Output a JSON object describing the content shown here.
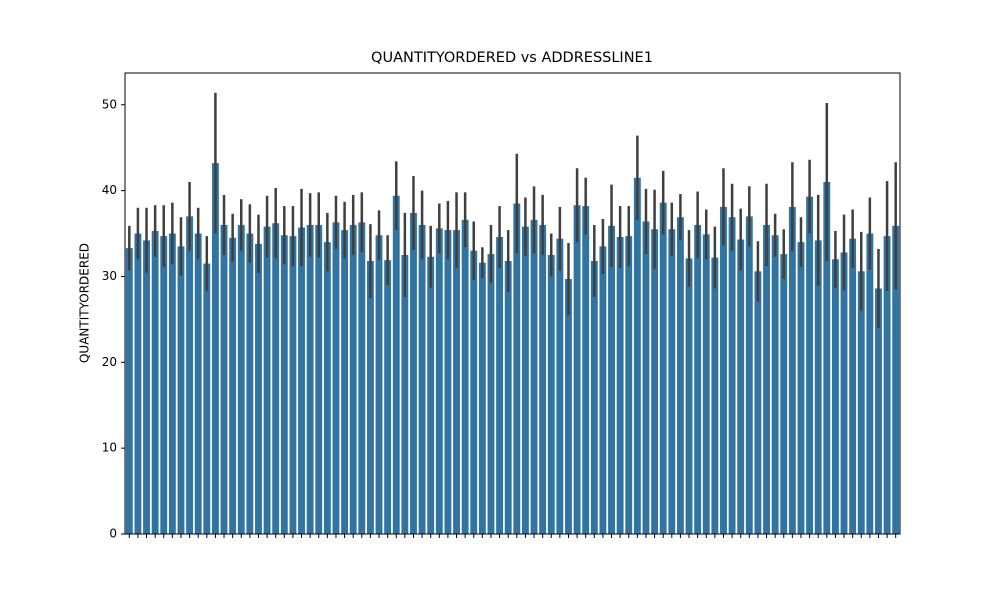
{
  "chart_data": {
    "type": "bar",
    "title": "QUANTITYORDERED vs ADDRESSLINE1",
    "ylabel": "QUANTITYORDERED",
    "categories": [
      null,
      null,
      null,
      null,
      null,
      null,
      null,
      null,
      null,
      null,
      null,
      null,
      null,
      null,
      null,
      null,
      null,
      null,
      null,
      null,
      null,
      null,
      null,
      null,
      null,
      null,
      null,
      null,
      null,
      null,
      null,
      null,
      null,
      null,
      null,
      null,
      null,
      null,
      null,
      null,
      null,
      null,
      null,
      null,
      null,
      null,
      null,
      null,
      null,
      null,
      null,
      null,
      null,
      null,
      null,
      null,
      null,
      null,
      null,
      null,
      null,
      null,
      null,
      null,
      null,
      null,
      null,
      null,
      null,
      null,
      null,
      null,
      null,
      null,
      null,
      null,
      null,
      null,
      null,
      null,
      null,
      null,
      null,
      null,
      null,
      null,
      null,
      null,
      null,
      null
    ],
    "values": [
      33.3,
      35,
      34.2,
      35.3,
      34.7,
      35,
      33.5,
      37,
      35,
      31.5,
      43.2,
      36,
      34.5,
      36,
      35,
      33.8,
      35.8,
      36.2,
      34.8,
      34.7,
      35.7,
      36,
      36,
      34,
      36.3,
      35.4,
      36,
      36.3,
      31.8,
      34.8,
      31.9,
      39.4,
      32.5,
      37.4,
      36,
      32.3,
      35.6,
      35.4,
      35.4,
      36.6,
      33,
      31.6,
      32.6,
      34.6,
      31.8,
      38.5,
      35.8,
      36.6,
      36,
      32.5,
      34.4,
      29.7,
      38.3,
      38.2,
      31.8,
      33.5,
      35.9,
      34.6,
      34.7,
      41.5,
      36.4,
      35.5,
      38.6,
      35.5,
      36.9,
      32.1,
      36,
      34.9,
      32.2,
      38.1,
      36.9,
      34.3,
      37,
      30.6,
      36,
      34.8,
      32.6,
      38.1,
      34,
      39.3,
      34.2,
      41,
      32,
      32.8,
      34.4,
      30.6,
      35,
      28.6,
      34.7,
      35.9
    ],
    "errors": [
      2.6,
      3,
      3.8,
      3,
      3.6,
      3.6,
      3.4,
      4,
      3,
      3.2,
      8.2,
      3.5,
      2.8,
      3,
      3.4,
      3.4,
      3.6,
      4.1,
      3.4,
      3.5,
      4.5,
      3.7,
      3.8,
      3.4,
      3.1,
      3.3,
      3.5,
      3.5,
      4.3,
      2.9,
      2.9,
      4,
      4.9,
      4.3,
      4,
      3.6,
      2.9,
      3.4,
      4.4,
      3.2,
      3.4,
      1.8,
      3.4,
      3.6,
      3.6,
      5.8,
      3.4,
      3.9,
      3.5,
      2.5,
      3.7,
      4.2,
      4.3,
      3.3,
      4.2,
      3.2,
      4.8,
      3.6,
      3.5,
      4.9,
      3.8,
      4.6,
      3.7,
      3.1,
      2.7,
      3.3,
      3.9,
      2.9,
      3.6,
      4.5,
      3.9,
      3.6,
      3.5,
      3.5,
      4.8,
      2.5,
      2.9,
      5.2,
      2.9,
      4.3,
      5.3,
      9.2,
      3.3,
      4.4,
      3.4,
      4.6,
      4.2,
      4.6,
      6.4,
      7.4
    ],
    "color": "#3274a1",
    "error_color": "#3f3f3f",
    "ylim": [
      0,
      53.7
    ],
    "yticks": [
      0,
      10,
      20,
      30,
      40,
      50
    ]
  }
}
